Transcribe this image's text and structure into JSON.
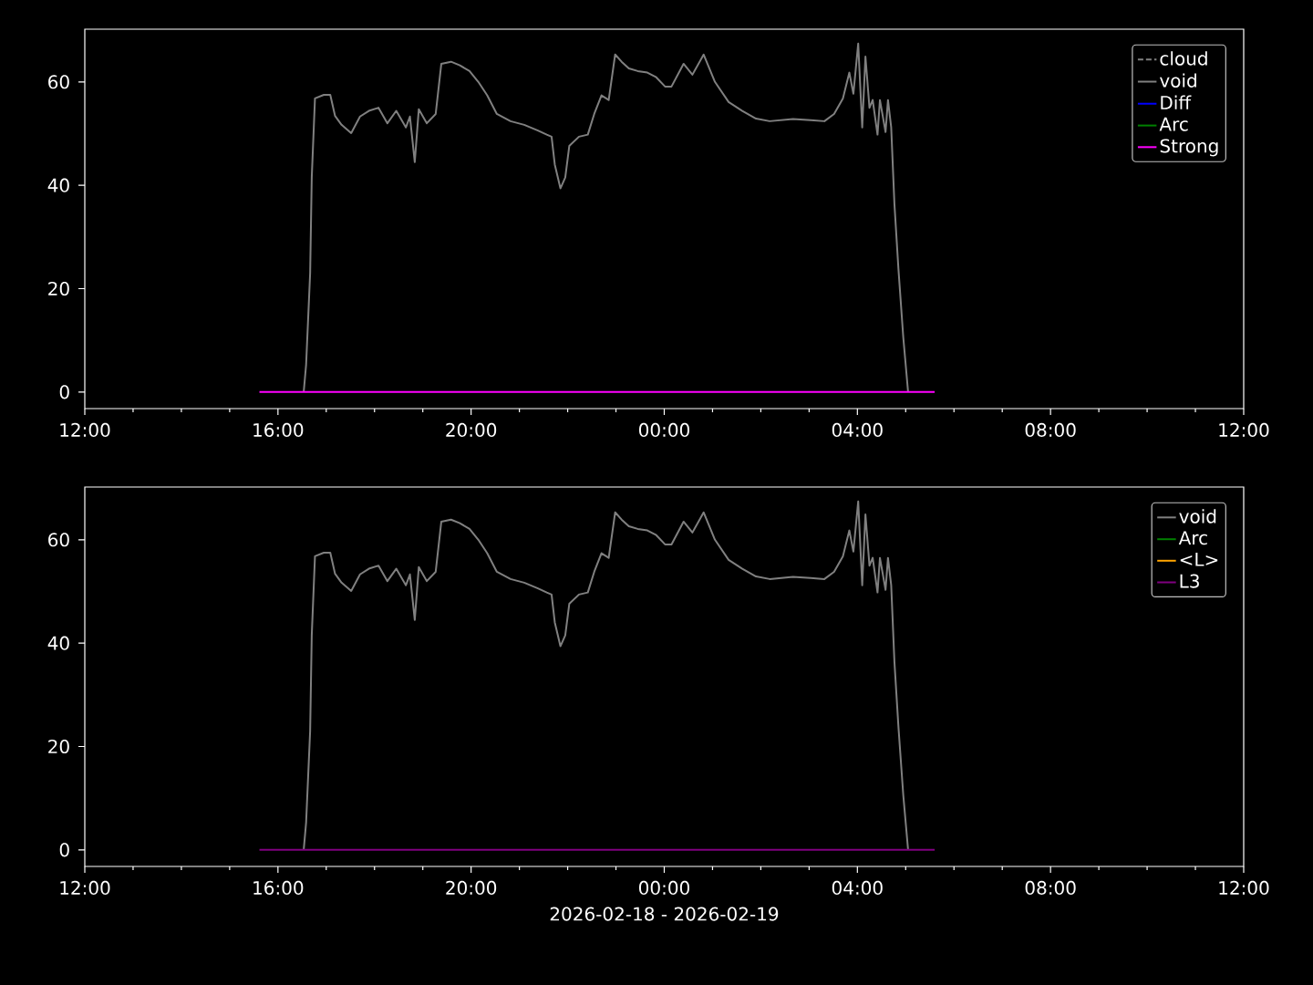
{
  "chart_data": [
    {
      "type": "line",
      "xlim": [
        "2026-02-18T12:00",
        "2026-02-19T12:00"
      ],
      "ylim": [
        -3.2,
        70.2
      ],
      "yticks": [
        0,
        20,
        40,
        60
      ],
      "xticks": [
        {
          "value": "2026-02-18T12:00",
          "label": "12:00"
        },
        {
          "value": "2026-02-18T13:00",
          "label": null
        },
        {
          "value": "2026-02-18T14:00",
          "label": null
        },
        {
          "value": "2026-02-18T15:00",
          "label": null
        },
        {
          "value": "2026-02-18T16:00",
          "label": "16:00"
        },
        {
          "value": "2026-02-18T17:00",
          "label": null
        },
        {
          "value": "2026-02-18T18:00",
          "label": null
        },
        {
          "value": "2026-02-18T19:00",
          "label": null
        },
        {
          "value": "2026-02-18T20:00",
          "label": "20:00"
        },
        {
          "value": "2026-02-18T21:00",
          "label": null
        },
        {
          "value": "2026-02-18T22:00",
          "label": null
        },
        {
          "value": "2026-02-18T23:00",
          "label": null
        },
        {
          "value": "2026-02-19T00:00",
          "label": "00:00"
        },
        {
          "value": "2026-02-19T01:00",
          "label": null
        },
        {
          "value": "2026-02-19T02:00",
          "label": null
        },
        {
          "value": "2026-02-19T03:00",
          "label": null
        },
        {
          "value": "2026-02-19T04:00",
          "label": "04:00"
        },
        {
          "value": "2026-02-19T05:00",
          "label": null
        },
        {
          "value": "2026-02-19T06:00",
          "label": null
        },
        {
          "value": "2026-02-19T07:00",
          "label": null
        },
        {
          "value": "2026-02-19T08:00",
          "label": "08:00"
        },
        {
          "value": "2026-02-19T09:00",
          "label": null
        },
        {
          "value": "2026-02-19T10:00",
          "label": null
        },
        {
          "value": "2026-02-19T11:00",
          "label": null
        },
        {
          "value": "2026-02-19T12:00",
          "label": "12:00"
        }
      ],
      "legend": "top right",
      "grid": false,
      "series": [
        {
          "name": "cloud",
          "color": "#808080",
          "line_style": "dashed"
        },
        {
          "name": "void",
          "color": "#808080",
          "x": [
            "2026-02-18T16:32",
            "2026-02-18T16:35",
            "2026-02-18T16:40",
            "2026-02-18T16:42",
            "2026-02-18T16:46",
            "2026-02-18T16:57",
            "2026-02-18T17:05",
            "2026-02-18T17:11",
            "2026-02-18T17:19",
            "2026-02-18T17:31",
            "2026-02-18T17:42",
            "2026-02-18T17:53",
            "2026-02-18T18:05",
            "2026-02-18T18:16",
            "2026-02-18T18:27",
            "2026-02-18T18:39",
            "2026-02-18T18:44",
            "2026-02-18T18:50",
            "2026-02-18T18:55",
            "2026-02-18T19:05",
            "2026-02-18T19:16",
            "2026-02-18T19:23",
            "2026-02-18T19:35",
            "2026-02-18T19:46",
            "2026-02-18T19:58",
            "2026-02-18T20:09",
            "2026-02-18T20:20",
            "2026-02-18T20:32",
            "2026-02-18T20:49",
            "2026-02-18T21:06",
            "2026-02-18T21:23",
            "2026-02-18T21:34",
            "2026-02-18T21:40",
            "2026-02-18T21:44",
            "2026-02-18T21:51",
            "2026-02-18T21:57",
            "2026-02-18T22:02",
            "2026-02-18T22:14",
            "2026-02-18T22:25",
            "2026-02-18T22:33",
            "2026-02-18T22:42",
            "2026-02-18T22:51",
            "2026-02-18T22:59",
            "2026-02-18T23:07",
            "2026-02-18T23:16",
            "2026-02-18T23:27",
            "2026-02-18T23:39",
            "2026-02-18T23:50",
            "2026-02-19T00:01",
            "2026-02-19T00:09",
            "2026-02-19T00:24",
            "2026-02-19T00:35",
            "2026-02-19T00:49",
            "2026-02-19T01:03",
            "2026-02-19T01:20",
            "2026-02-19T01:37",
            "2026-02-19T01:54",
            "2026-02-19T02:11",
            "2026-02-19T02:40",
            "2026-02-19T03:02",
            "2026-02-19T03:19",
            "2026-02-19T03:31",
            "2026-02-19T03:42",
            "2026-02-19T03:50",
            "2026-02-19T03:55",
            "2026-02-19T04:01",
            "2026-02-19T04:06",
            "2026-02-19T04:10",
            "2026-02-19T04:15",
            "2026-02-19T04:19",
            "2026-02-19T04:25",
            "2026-02-19T04:28",
            "2026-02-19T04:35",
            "2026-02-19T04:38",
            "2026-02-19T04:42",
            "2026-02-19T04:46",
            "2026-02-19T04:51",
            "2026-02-19T04:57",
            "2026-02-19T05:03"
          ],
          "values": [
            0,
            5.3,
            23,
            41.5,
            56.8,
            57.5,
            57.5,
            53.4,
            51.7,
            50.1,
            53.3,
            54.4,
            55,
            52,
            54.4,
            51.2,
            53.3,
            44.5,
            54.7,
            52,
            53.8,
            63.5,
            63.9,
            63.2,
            62.1,
            60,
            57.4,
            53.8,
            52.4,
            51.7,
            50.6,
            49.8,
            49.4,
            44,
            39.4,
            41.5,
            47.6,
            49.4,
            49.8,
            53.8,
            57.4,
            56.5,
            65.3,
            63.9,
            62.6,
            62.1,
            61.8,
            60.9,
            59.1,
            59.1,
            63.5,
            61.4,
            65.3,
            60,
            56.1,
            54.4,
            52.9,
            52.4,
            52.8,
            52.6,
            52.4,
            53.8,
            56.8,
            61.8,
            57.7,
            67.4,
            51.2,
            64.9,
            55,
            56.5,
            49.8,
            56.5,
            50.3,
            56.5,
            51.2,
            36.4,
            23.8,
            10.6,
            0
          ]
        },
        {
          "name": "Diff",
          "color": "#0000ff"
        },
        {
          "name": "Arc",
          "color": "#008000"
        },
        {
          "name": "Strong",
          "color": "#ff00ff",
          "x": [
            "2026-02-18T15:37",
            "2026-02-19T05:36"
          ],
          "values": [
            0,
            0
          ]
        }
      ]
    },
    {
      "type": "line",
      "xlim": [
        "2026-02-18T12:00",
        "2026-02-19T12:00"
      ],
      "ylim": [
        -3.2,
        70.2
      ],
      "yticks": [
        0,
        20,
        40,
        60
      ],
      "xlabel": "2026-02-18 - 2026-02-19",
      "xticks": [
        {
          "value": "2026-02-18T12:00",
          "label": "12:00"
        },
        {
          "value": "2026-02-18T13:00",
          "label": null
        },
        {
          "value": "2026-02-18T14:00",
          "label": null
        },
        {
          "value": "2026-02-18T15:00",
          "label": null
        },
        {
          "value": "2026-02-18T16:00",
          "label": "16:00"
        },
        {
          "value": "2026-02-18T17:00",
          "label": null
        },
        {
          "value": "2026-02-18T18:00",
          "label": null
        },
        {
          "value": "2026-02-18T19:00",
          "label": null
        },
        {
          "value": "2026-02-18T20:00",
          "label": "20:00"
        },
        {
          "value": "2026-02-18T21:00",
          "label": null
        },
        {
          "value": "2026-02-18T22:00",
          "label": null
        },
        {
          "value": "2026-02-18T23:00",
          "label": null
        },
        {
          "value": "2026-02-19T00:00",
          "label": "00:00"
        },
        {
          "value": "2026-02-19T01:00",
          "label": null
        },
        {
          "value": "2026-02-19T02:00",
          "label": null
        },
        {
          "value": "2026-02-19T03:00",
          "label": null
        },
        {
          "value": "2026-02-19T04:00",
          "label": "04:00"
        },
        {
          "value": "2026-02-19T05:00",
          "label": null
        },
        {
          "value": "2026-02-19T06:00",
          "label": null
        },
        {
          "value": "2026-02-19T07:00",
          "label": null
        },
        {
          "value": "2026-02-19T08:00",
          "label": "08:00"
        },
        {
          "value": "2026-02-19T09:00",
          "label": null
        },
        {
          "value": "2026-02-19T10:00",
          "label": null
        },
        {
          "value": "2026-02-19T11:00",
          "label": null
        },
        {
          "value": "2026-02-19T12:00",
          "label": "12:00"
        }
      ],
      "legend": "top right",
      "grid": false,
      "series": [
        {
          "name": "void",
          "color": "#808080",
          "x": [
            "2026-02-18T16:32",
            "2026-02-18T16:35",
            "2026-02-18T16:40",
            "2026-02-18T16:42",
            "2026-02-18T16:46",
            "2026-02-18T16:57",
            "2026-02-18T17:05",
            "2026-02-18T17:11",
            "2026-02-18T17:19",
            "2026-02-18T17:31",
            "2026-02-18T17:42",
            "2026-02-18T17:53",
            "2026-02-18T18:05",
            "2026-02-18T18:16",
            "2026-02-18T18:27",
            "2026-02-18T18:39",
            "2026-02-18T18:44",
            "2026-02-18T18:50",
            "2026-02-18T18:55",
            "2026-02-18T19:05",
            "2026-02-18T19:16",
            "2026-02-18T19:23",
            "2026-02-18T19:35",
            "2026-02-18T19:46",
            "2026-02-18T19:58",
            "2026-02-18T20:09",
            "2026-02-18T20:20",
            "2026-02-18T20:32",
            "2026-02-18T20:49",
            "2026-02-18T21:06",
            "2026-02-18T21:23",
            "2026-02-18T21:34",
            "2026-02-18T21:40",
            "2026-02-18T21:44",
            "2026-02-18T21:51",
            "2026-02-18T21:57",
            "2026-02-18T22:02",
            "2026-02-18T22:14",
            "2026-02-18T22:25",
            "2026-02-18T22:33",
            "2026-02-18T22:42",
            "2026-02-18T22:51",
            "2026-02-18T22:59",
            "2026-02-18T23:07",
            "2026-02-18T23:16",
            "2026-02-18T23:27",
            "2026-02-18T23:39",
            "2026-02-18T23:50",
            "2026-02-19T00:01",
            "2026-02-19T00:09",
            "2026-02-19T00:24",
            "2026-02-19T00:35",
            "2026-02-19T00:49",
            "2026-02-19T01:03",
            "2026-02-19T01:20",
            "2026-02-19T01:37",
            "2026-02-19T01:54",
            "2026-02-19T02:11",
            "2026-02-19T02:40",
            "2026-02-19T03:02",
            "2026-02-19T03:19",
            "2026-02-19T03:31",
            "2026-02-19T03:42",
            "2026-02-19T03:50",
            "2026-02-19T03:55",
            "2026-02-19T04:01",
            "2026-02-19T04:06",
            "2026-02-19T04:10",
            "2026-02-19T04:15",
            "2026-02-19T04:19",
            "2026-02-19T04:25",
            "2026-02-19T04:28",
            "2026-02-19T04:35",
            "2026-02-19T04:38",
            "2026-02-19T04:42",
            "2026-02-19T04:46",
            "2026-02-19T04:51",
            "2026-02-19T04:57",
            "2026-02-19T05:03"
          ],
          "values": [
            0,
            5.3,
            23,
            41.5,
            56.8,
            57.5,
            57.5,
            53.4,
            51.7,
            50.1,
            53.3,
            54.4,
            55,
            52,
            54.4,
            51.2,
            53.3,
            44.5,
            54.7,
            52,
            53.8,
            63.5,
            63.9,
            63.2,
            62.1,
            60,
            57.4,
            53.8,
            52.4,
            51.7,
            50.6,
            49.8,
            49.4,
            44,
            39.4,
            41.5,
            47.6,
            49.4,
            49.8,
            53.8,
            57.4,
            56.5,
            65.3,
            63.9,
            62.6,
            62.1,
            61.8,
            60.9,
            59.1,
            59.1,
            63.5,
            61.4,
            65.3,
            60,
            56.1,
            54.4,
            52.9,
            52.4,
            52.8,
            52.6,
            52.4,
            53.8,
            56.8,
            61.8,
            57.7,
            67.4,
            51.2,
            64.9,
            55,
            56.5,
            49.8,
            56.5,
            50.3,
            56.5,
            51.2,
            36.4,
            23.8,
            10.6,
            0
          ]
        },
        {
          "name": "Arc",
          "color": "#008000"
        },
        {
          "name": "<L>",
          "color": "#ffa500"
        },
        {
          "name": "L3",
          "color": "#800080",
          "x": [
            "2026-02-18T15:37",
            "2026-02-19T05:36"
          ],
          "values": [
            0,
            0
          ]
        }
      ]
    }
  ]
}
